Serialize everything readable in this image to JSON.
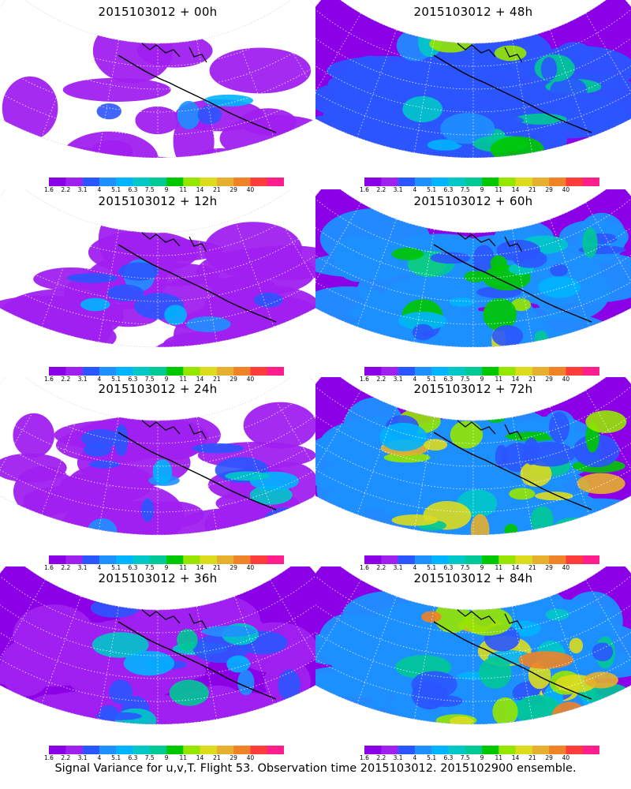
{
  "colorbar": {
    "colors": [
      "#8b00e6",
      "#a020f0",
      "#2b55ff",
      "#1e90ff",
      "#00b4ff",
      "#00c8c8",
      "#00c896",
      "#00c800",
      "#96e600",
      "#dcdc1e",
      "#e6af2d",
      "#f08228",
      "#ff3c3c",
      "#ff1e8c"
    ],
    "labels": [
      "1.6",
      "2.2",
      "3.1",
      "4",
      "5.1",
      "6.3",
      "7.5",
      "9",
      "11",
      "14",
      "21",
      "29",
      "40"
    ]
  },
  "panels": [
    {
      "title": "2015103012 + 00h",
      "level": 0
    },
    {
      "title": "2015103012 + 48h",
      "level": 4
    },
    {
      "title": "2015103012 + 12h",
      "level": 1
    },
    {
      "title": "2015103012 + 60h",
      "level": 5
    },
    {
      "title": "2015103012 + 24h",
      "level": 2
    },
    {
      "title": "2015103012 + 72h",
      "level": 6
    },
    {
      "title": "2015103012 + 36h",
      "level": 3
    },
    {
      "title": "2015103012 + 84h",
      "level": 7
    }
  ],
  "footer": "Signal Variance for u,v,T. Flight 53. Observation time 2015103012. 2015102900 ensemble."
}
